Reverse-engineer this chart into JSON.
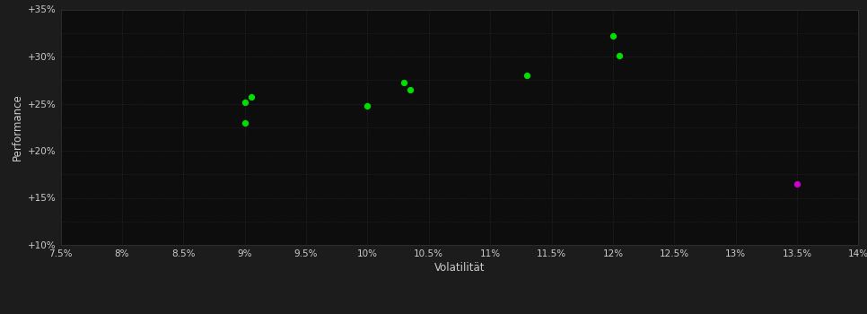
{
  "background_color": "#1c1c1c",
  "plot_bg_color": "#0d0d0d",
  "grid_color": "#333333",
  "green_color": "#00dd00",
  "magenta_color": "#cc00cc",
  "green_points": [
    [
      9.0,
      23.0
    ],
    [
      9.0,
      25.1
    ],
    [
      9.05,
      25.7
    ],
    [
      10.0,
      24.8
    ],
    [
      10.3,
      27.2
    ],
    [
      10.35,
      26.5
    ],
    [
      11.3,
      28.0
    ],
    [
      12.0,
      32.2
    ],
    [
      12.05,
      30.1
    ]
  ],
  "magenta_points": [
    [
      13.5,
      16.5
    ]
  ],
  "xlabel": "Volatilität",
  "ylabel": "Performance",
  "xlim": [
    7.5,
    14.0
  ],
  "ylim": [
    10.0,
    35.0
  ],
  "xticks": [
    7.5,
    8.0,
    8.5,
    9.0,
    9.5,
    10.0,
    10.5,
    11.0,
    11.5,
    12.0,
    12.5,
    13.0,
    13.5,
    14.0
  ],
  "yticks": [
    10.0,
    15.0,
    20.0,
    25.0,
    30.0,
    35.0
  ],
  "marker_size": 18,
  "tick_label_color": "#cccccc",
  "axis_label_color": "#cccccc",
  "tick_fontsize": 7.5,
  "label_fontsize": 8.5
}
